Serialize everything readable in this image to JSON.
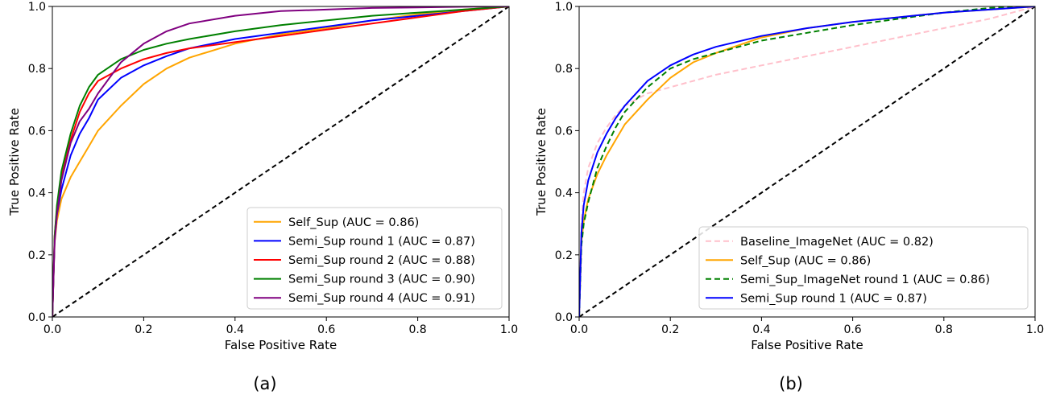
{
  "chart_data": [
    {
      "type": "line",
      "panel_label": "(a)",
      "xlabel": "False Positive Rate",
      "ylabel": "True Positive Rate",
      "xlim": [
        0,
        1
      ],
      "ylim": [
        0,
        1
      ],
      "xticks": [
        "0.0",
        "0.2",
        "0.4",
        "0.6",
        "0.8",
        "1.0"
      ],
      "yticks": [
        "0.0",
        "0.2",
        "0.4",
        "0.6",
        "0.8",
        "1.0"
      ],
      "grid": false,
      "legend_position": "lower-right",
      "diagonal": {
        "style": "dashed",
        "color": "#000000",
        "x": [
          0,
          1
        ],
        "y": [
          0,
          1
        ]
      },
      "series": [
        {
          "name": "Self_Sup (AUC = 0.86)",
          "color": "#ffa500",
          "dash": "solid",
          "x": [
            0,
            0.005,
            0.01,
            0.02,
            0.04,
            0.06,
            0.08,
            0.1,
            0.15,
            0.2,
            0.25,
            0.3,
            0.4,
            0.5,
            0.6,
            0.7,
            0.8,
            0.9,
            1.0
          ],
          "y": [
            0,
            0.24,
            0.31,
            0.38,
            0.45,
            0.5,
            0.55,
            0.6,
            0.68,
            0.75,
            0.8,
            0.835,
            0.88,
            0.91,
            0.93,
            0.955,
            0.975,
            0.99,
            1.0
          ]
        },
        {
          "name": "Semi_Sup round 1 (AUC = 0.87)",
          "color": "#0000ff",
          "dash": "solid",
          "x": [
            0,
            0.005,
            0.01,
            0.02,
            0.04,
            0.06,
            0.08,
            0.1,
            0.15,
            0.2,
            0.25,
            0.3,
            0.4,
            0.5,
            0.6,
            0.7,
            0.8,
            0.9,
            1.0
          ],
          "y": [
            0,
            0.25,
            0.33,
            0.41,
            0.52,
            0.59,
            0.64,
            0.7,
            0.77,
            0.81,
            0.84,
            0.865,
            0.895,
            0.915,
            0.935,
            0.955,
            0.97,
            0.985,
            1.0
          ]
        },
        {
          "name": "Semi_Sup round 2 (AUC = 0.88)",
          "color": "#ff0000",
          "dash": "solid",
          "x": [
            0,
            0.005,
            0.01,
            0.02,
            0.04,
            0.06,
            0.08,
            0.1,
            0.15,
            0.2,
            0.25,
            0.3,
            0.4,
            0.5,
            0.6,
            0.7,
            0.8,
            0.9,
            1.0
          ],
          "y": [
            0,
            0.26,
            0.35,
            0.45,
            0.57,
            0.66,
            0.72,
            0.76,
            0.8,
            0.83,
            0.85,
            0.865,
            0.885,
            0.905,
            0.925,
            0.945,
            0.965,
            0.985,
            1.0
          ]
        },
        {
          "name": "Semi_Sup round 3 (AUC = 0.90)",
          "color": "#008000",
          "dash": "solid",
          "x": [
            0,
            0.005,
            0.01,
            0.02,
            0.04,
            0.06,
            0.08,
            0.1,
            0.15,
            0.2,
            0.25,
            0.3,
            0.4,
            0.5,
            0.6,
            0.7,
            0.8,
            0.9,
            1.0
          ],
          "y": [
            0,
            0.26,
            0.36,
            0.47,
            0.59,
            0.68,
            0.74,
            0.78,
            0.83,
            0.86,
            0.88,
            0.895,
            0.92,
            0.94,
            0.955,
            0.97,
            0.98,
            0.99,
            1.0
          ]
        },
        {
          "name": "Semi_Sup round 4 (AUC = 0.91)",
          "color": "#800080",
          "dash": "solid",
          "x": [
            0,
            0.005,
            0.01,
            0.02,
            0.04,
            0.06,
            0.08,
            0.1,
            0.15,
            0.2,
            0.25,
            0.3,
            0.4,
            0.5,
            0.6,
            0.7,
            0.8,
            0.9,
            1.0
          ],
          "y": [
            0,
            0.24,
            0.33,
            0.44,
            0.56,
            0.63,
            0.67,
            0.72,
            0.82,
            0.88,
            0.92,
            0.945,
            0.97,
            0.985,
            0.99,
            0.995,
            0.997,
            0.999,
            1.0
          ]
        }
      ]
    },
    {
      "type": "line",
      "panel_label": "(b)",
      "xlabel": "False Positive Rate",
      "ylabel": "True Positive Rate",
      "xlim": [
        0,
        1
      ],
      "ylim": [
        0,
        1
      ],
      "xticks": [
        "0.0",
        "0.2",
        "0.4",
        "0.6",
        "0.8",
        "1.0"
      ],
      "yticks": [
        "0.0",
        "0.2",
        "0.4",
        "0.6",
        "0.8",
        "1.0"
      ],
      "grid": false,
      "legend_position": "lower-right",
      "diagonal": {
        "style": "dashed",
        "color": "#000000",
        "x": [
          0,
          1
        ],
        "y": [
          0,
          1
        ]
      },
      "series": [
        {
          "name": "Baseline_ImageNet (AUC = 0.82)",
          "color": "#ffc0cb",
          "dash": "dashed",
          "x": [
            0,
            0.005,
            0.01,
            0.02,
            0.04,
            0.06,
            0.08,
            0.1,
            0.15,
            0.2,
            0.3,
            0.4,
            0.5,
            0.6,
            0.7,
            0.8,
            0.9,
            1.0
          ],
          "y": [
            0,
            0.3,
            0.4,
            0.48,
            0.56,
            0.61,
            0.65,
            0.68,
            0.72,
            0.74,
            0.78,
            0.81,
            0.84,
            0.87,
            0.9,
            0.93,
            0.96,
            1.0
          ]
        },
        {
          "name": "Self_Sup (AUC = 0.86)",
          "color": "#ffa500",
          "dash": "solid",
          "x": [
            0,
            0.005,
            0.01,
            0.02,
            0.04,
            0.06,
            0.08,
            0.1,
            0.15,
            0.2,
            0.25,
            0.3,
            0.4,
            0.5,
            0.6,
            0.7,
            0.8,
            0.9,
            1.0
          ],
          "y": [
            0,
            0.24,
            0.31,
            0.38,
            0.46,
            0.52,
            0.57,
            0.62,
            0.7,
            0.77,
            0.82,
            0.85,
            0.9,
            0.93,
            0.95,
            0.965,
            0.98,
            0.99,
            1.0
          ]
        },
        {
          "name": "Semi_Sup_ImageNet round 1 (AUC = 0.86)",
          "color": "#008000",
          "dash": "dashed",
          "x": [
            0,
            0.005,
            0.01,
            0.02,
            0.04,
            0.06,
            0.08,
            0.1,
            0.15,
            0.2,
            0.25,
            0.3,
            0.4,
            0.5,
            0.6,
            0.7,
            0.8,
            0.9,
            1.0
          ],
          "y": [
            0,
            0.23,
            0.3,
            0.37,
            0.48,
            0.55,
            0.61,
            0.66,
            0.74,
            0.8,
            0.83,
            0.85,
            0.89,
            0.915,
            0.94,
            0.96,
            0.98,
            0.995,
            1.0
          ]
        },
        {
          "name": "Semi_Sup round 1 (AUC = 0.87)",
          "color": "#0000ff",
          "dash": "solid",
          "x": [
            0,
            0.005,
            0.01,
            0.02,
            0.04,
            0.06,
            0.08,
            0.1,
            0.15,
            0.2,
            0.25,
            0.3,
            0.4,
            0.5,
            0.6,
            0.7,
            0.8,
            0.9,
            1.0
          ],
          "y": [
            0,
            0.27,
            0.36,
            0.44,
            0.53,
            0.59,
            0.64,
            0.68,
            0.76,
            0.81,
            0.845,
            0.87,
            0.905,
            0.93,
            0.95,
            0.965,
            0.98,
            0.99,
            1.0
          ]
        }
      ]
    }
  ]
}
